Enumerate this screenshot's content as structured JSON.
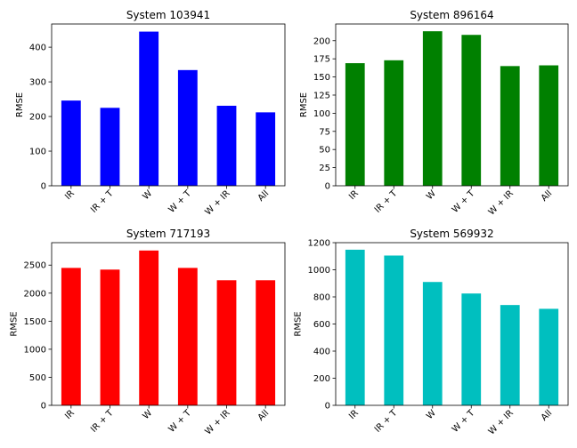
{
  "chart_data": [
    {
      "type": "bar",
      "title": "System 103941",
      "ylabel": "RMSE",
      "xlabel": "",
      "categories": [
        "IR",
        "IR + T",
        "W",
        "W + T",
        "W + IR",
        "All"
      ],
      "values": [
        246,
        225,
        445,
        334,
        231,
        212
      ],
      "color": "#0000ff",
      "ylim": [
        0,
        467
      ],
      "yticks": [
        0,
        100,
        200,
        300,
        400
      ],
      "grid": false
    },
    {
      "type": "bar",
      "title": "System 896164",
      "ylabel": "RMSE",
      "xlabel": "",
      "categories": [
        "IR",
        "IR + T",
        "W",
        "W + T",
        "W + IR",
        "All"
      ],
      "values": [
        169,
        173,
        213,
        208,
        165,
        166
      ],
      "color": "#008000",
      "ylim": [
        0,
        223
      ],
      "yticks": [
        0,
        25,
        50,
        75,
        100,
        125,
        150,
        175,
        200
      ],
      "grid": false
    },
    {
      "type": "bar",
      "title": "System 717193",
      "ylabel": "RMSE",
      "xlabel": "",
      "categories": [
        "IR",
        "IR + T",
        "W",
        "W + T",
        "W + IR",
        "All"
      ],
      "values": [
        2450,
        2420,
        2760,
        2450,
        2230,
        2230
      ],
      "color": "#ff0000",
      "ylim": [
        0,
        2900
      ],
      "yticks": [
        0,
        500,
        1000,
        1500,
        2000,
        2500
      ],
      "grid": false
    },
    {
      "type": "bar",
      "title": "System 569932",
      "ylabel": "RMSE",
      "xlabel": "",
      "categories": [
        "IR",
        "IR + T",
        "W",
        "W + T",
        "W + IR",
        "All"
      ],
      "values": [
        1148,
        1105,
        910,
        825,
        740,
        712
      ],
      "color": "#00bfbf",
      "ylim": [
        0,
        1200
      ],
      "yticks": [
        0,
        200,
        400,
        600,
        800,
        1000,
        1200
      ],
      "grid": false
    }
  ]
}
